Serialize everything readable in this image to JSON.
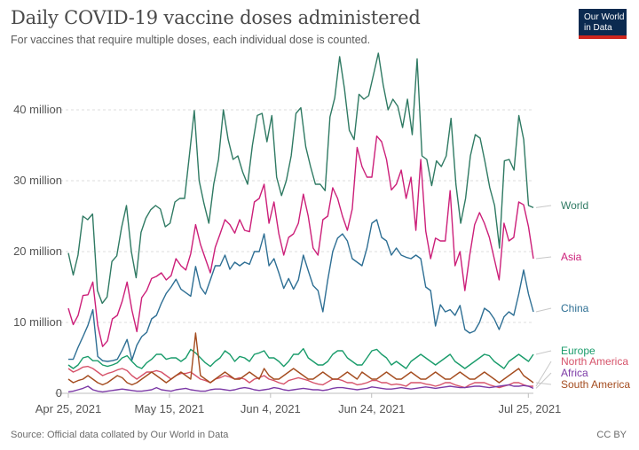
{
  "header": {
    "title": "Daily COVID-19 vaccine doses administered",
    "subtitle": "For vaccines that require multiple doses, each individual dose is counted.",
    "logo_line1": "Our World",
    "logo_line2": "in Data"
  },
  "footer": {
    "source": "Source: Official data collated by Our World in Data",
    "license": "CC BY"
  },
  "colors": {
    "World": "#2f7a63",
    "Asia": "#cc1f79",
    "China": "#2e6f94",
    "Europe": "#1a9c6b",
    "North America": "#d6536a",
    "Africa": "#7c3aa6",
    "South America": "#a44c1f"
  },
  "chart_data": {
    "type": "line",
    "title": "Daily COVID-19 vaccine doses administered",
    "subtitle": "For vaccines that require multiple doses, each individual dose is counted.",
    "x_start": "Apr 25, 2021",
    "x_end": "Jul 26, 2021",
    "x_ticks": [
      "Apr 25, 2021",
      "May 15, 2021",
      "Jun 4, 2021",
      "Jun 24, 2021",
      "Jul 25, 2021"
    ],
    "y_unit": "million doses",
    "ylim": [
      0,
      48
    ],
    "y_ticks": [
      0,
      10,
      20,
      30,
      40
    ],
    "y_tick_labels": [
      "0",
      "10 million",
      "20 million",
      "30 million",
      "40 million"
    ],
    "grid": "horizontal dashed",
    "legend": "inline labels at right",
    "series": [
      {
        "name": "World",
        "values": [
          19.8,
          16.7,
          19.5,
          25.0,
          24.5,
          25.3,
          14.5,
          12.7,
          13.6,
          18.6,
          19.4,
          23.4,
          26.5,
          20.0,
          16.3,
          22.7,
          24.7,
          25.9,
          26.5,
          26.0,
          23.5,
          24.0,
          27.0,
          27.5,
          27.5,
          33.7,
          39.9,
          30.0,
          26.8,
          24.0,
          29.5,
          33.0,
          40.0,
          35.8,
          33.0,
          33.5,
          31.2,
          29.5,
          35.0,
          39.2,
          39.5,
          35.5,
          39.2,
          30.5,
          27.9,
          30.0,
          33.5,
          39.5,
          40.3,
          34.8,
          32.0,
          29.5,
          29.5,
          28.6,
          39.0,
          41.7,
          47.5,
          43.0,
          37.1,
          35.8,
          42.2,
          41.5,
          42.0,
          45.0,
          48.0,
          43.5,
          40.0,
          41.5,
          40.5,
          37.5,
          41.5,
          36.5,
          47.2,
          33.5,
          33.0,
          29.3,
          32.8,
          32.0,
          33.5,
          38.8,
          29.5,
          24.0,
          27.5,
          33.5,
          36.5,
          36.0,
          32.7,
          29.0,
          26.5,
          20.5,
          32.8,
          33.0,
          31.5,
          39.2,
          35.8,
          26.5,
          26.2
        ]
      },
      {
        "name": "Asia",
        "values": [
          12.0,
          9.7,
          11.0,
          13.8,
          13.9,
          15.7,
          9.6,
          6.6,
          7.4,
          10.5,
          11.0,
          13.0,
          15.7,
          11.7,
          8.7,
          13.5,
          14.5,
          16.2,
          16.5,
          17.0,
          16.0,
          16.6,
          19.0,
          18.0,
          17.4,
          19.7,
          23.8,
          21.0,
          19.0,
          17.0,
          20.6,
          22.5,
          24.5,
          23.8,
          22.6,
          24.5,
          23.0,
          22.8,
          27.0,
          27.5,
          29.5,
          24.0,
          27.0,
          22.5,
          19.5,
          22.0,
          22.5,
          24.0,
          28.1,
          25.0,
          20.5,
          19.5,
          24.5,
          25.0,
          29.0,
          27.5,
          25.0,
          23.0,
          26.0,
          34.7,
          32.0,
          30.5,
          30.5,
          36.3,
          35.5,
          33.0,
          28.7,
          29.5,
          31.5,
          27.5,
          30.5,
          23.0,
          33.0,
          22.9,
          19.0,
          21.9,
          21.5,
          21.5,
          28.6,
          18.0,
          20.0,
          14.5,
          19.5,
          23.8,
          25.5,
          24.0,
          22.0,
          19.0,
          16.0,
          24.0,
          21.5,
          22.0,
          27.0,
          26.6,
          23.5,
          19.0
        ]
      },
      {
        "name": "China",
        "values": [
          4.8,
          4.8,
          6.5,
          8.0,
          9.6,
          11.8,
          5.2,
          4.6,
          4.5,
          4.6,
          4.8,
          6.1,
          7.6,
          4.7,
          6.8,
          8.0,
          8.6,
          10.5,
          11.0,
          12.7,
          14.1,
          15.0,
          16.1,
          14.7,
          14.2,
          13.7,
          17.9,
          15.0,
          14.0,
          16.0,
          18.0,
          18.0,
          19.5,
          17.5,
          18.5,
          18.0,
          18.5,
          18.2,
          20.0,
          20.0,
          22.5,
          18.0,
          19.0,
          17.0,
          14.8,
          16.2,
          14.7,
          16.0,
          19.5,
          17.3,
          15.2,
          14.5,
          11.5,
          16.0,
          20.0,
          21.9,
          22.5,
          21.5,
          19.0,
          18.5,
          18.0,
          20.5,
          24.0,
          24.5,
          22.0,
          21.5,
          19.5,
          20.5,
          19.5,
          19.2,
          19.0,
          19.5,
          19.0,
          15.0,
          14.5,
          9.5,
          12.5,
          11.5,
          11.8,
          11.0,
          12.4,
          9.0,
          8.5,
          8.8,
          10.0,
          12.0,
          11.5,
          10.5,
          9.0,
          10.8,
          11.5,
          11.0,
          14.0,
          17.4,
          14.0,
          11.5
        ]
      },
      {
        "name": "Europe",
        "values": [
          4.0,
          3.5,
          4.0,
          5.0,
          5.2,
          4.6,
          4.6,
          4.0,
          3.8,
          4.0,
          4.3,
          5.0,
          5.3,
          4.5,
          3.8,
          3.5,
          4.3,
          4.8,
          5.5,
          5.5,
          4.8,
          5.0,
          5.0,
          4.5,
          5.0,
          6.2,
          5.7,
          5.0,
          4.3,
          3.8,
          4.5,
          5.0,
          6.0,
          5.5,
          4.5,
          5.2,
          5.0,
          4.5,
          5.5,
          5.7,
          6.0,
          5.0,
          5.0,
          4.5,
          3.8,
          4.5,
          5.5,
          5.5,
          6.3,
          5.0,
          4.5,
          4.0,
          4.0,
          4.5,
          5.5,
          6.0,
          6.0,
          5.0,
          4.5,
          4.0,
          4.0,
          5.0,
          6.0,
          6.2,
          5.5,
          5.0,
          4.0,
          4.5,
          4.0,
          3.5,
          4.5,
          5.0,
          5.5,
          5.0,
          4.5,
          4.0,
          4.5,
          5.0,
          5.5,
          4.5,
          4.0,
          3.5,
          4.0,
          4.5,
          5.0,
          5.5,
          5.3,
          4.5,
          4.0,
          3.5,
          4.5,
          5.0,
          5.5,
          5.0,
          4.5,
          5.5
        ]
      },
      {
        "name": "North America",
        "values": [
          3.5,
          3.0,
          3.3,
          3.7,
          3.8,
          3.5,
          3.0,
          2.5,
          2.8,
          3.0,
          3.3,
          3.5,
          3.2,
          2.5,
          2.0,
          2.5,
          3.0,
          3.0,
          3.2,
          3.0,
          2.5,
          2.0,
          2.5,
          2.8,
          2.8,
          3.0,
          2.5,
          2.0,
          1.8,
          1.5,
          2.0,
          2.2,
          2.5,
          2.3,
          2.0,
          2.2,
          2.0,
          1.5,
          2.0,
          2.2,
          2.5,
          2.0,
          1.8,
          1.5,
          1.3,
          1.8,
          2.0,
          2.2,
          2.0,
          1.8,
          1.5,
          1.3,
          1.2,
          1.6,
          2.0,
          2.0,
          1.8,
          1.5,
          1.5,
          1.2,
          1.3,
          1.5,
          1.8,
          1.8,
          1.5,
          1.5,
          1.2,
          1.3,
          1.2,
          1.0,
          1.5,
          1.5,
          1.5,
          1.3,
          1.2,
          1.0,
          1.2,
          1.5,
          1.5,
          1.2,
          1.0,
          0.8,
          1.2,
          1.5,
          1.5,
          1.5,
          1.2,
          1.0,
          0.8,
          1.0,
          1.2,
          1.5,
          1.5,
          1.2,
          1.0,
          1.0
        ]
      },
      {
        "name": "Africa",
        "values": [
          0.2,
          0.3,
          0.5,
          0.7,
          1.0,
          0.5,
          0.3,
          0.2,
          0.3,
          0.4,
          0.5,
          0.6,
          0.5,
          0.4,
          0.3,
          0.3,
          0.4,
          0.5,
          0.8,
          0.5,
          0.4,
          0.3,
          0.5,
          0.6,
          0.7,
          0.5,
          0.4,
          0.3,
          0.3,
          0.5,
          0.6,
          0.6,
          0.5,
          0.4,
          0.5,
          0.7,
          0.8,
          0.7,
          0.5,
          0.4,
          0.5,
          0.6,
          0.8,
          0.7,
          0.5,
          0.4,
          0.5,
          0.6,
          0.7,
          0.6,
          0.5,
          0.5,
          0.4,
          0.5,
          0.7,
          0.8,
          0.8,
          0.7,
          0.6,
          0.5,
          0.6,
          0.7,
          0.9,
          0.8,
          0.7,
          0.6,
          0.6,
          0.7,
          0.8,
          0.7,
          0.6,
          0.7,
          0.8,
          0.9,
          0.8,
          0.7,
          0.8,
          0.9,
          1.0,
          0.9,
          0.8,
          0.8,
          0.9,
          1.0,
          1.0,
          0.9,
          0.8,
          0.9,
          1.0,
          1.1,
          1.2,
          1.0,
          1.0,
          1.1,
          1.0,
          0.7
        ]
      },
      {
        "name": "South America",
        "values": [
          2.0,
          1.5,
          1.8,
          2.0,
          2.5,
          2.0,
          1.5,
          1.2,
          1.5,
          2.0,
          2.5,
          2.2,
          1.5,
          1.2,
          1.5,
          2.0,
          2.5,
          3.0,
          2.5,
          2.0,
          1.5,
          2.0,
          2.5,
          3.0,
          2.5,
          2.0,
          8.5,
          2.5,
          2.0,
          1.5,
          2.0,
          2.5,
          3.0,
          2.5,
          2.0,
          2.0,
          2.5,
          3.0,
          2.5,
          2.0,
          3.5,
          2.5,
          2.0,
          2.0,
          2.5,
          3.0,
          3.5,
          3.0,
          2.5,
          2.0,
          2.0,
          2.5,
          3.0,
          2.5,
          2.0,
          2.0,
          2.5,
          3.0,
          2.5,
          2.0,
          3.0,
          2.5,
          2.0,
          2.0,
          2.5,
          3.0,
          2.5,
          2.0,
          2.0,
          2.5,
          3.0,
          2.5,
          2.0,
          2.0,
          2.5,
          3.0,
          2.5,
          2.0,
          2.0,
          2.5,
          3.0,
          2.5,
          2.0,
          2.0,
          2.5,
          3.0,
          2.5,
          2.0,
          1.5,
          2.0,
          2.5,
          3.0,
          3.5,
          2.5,
          2.0,
          1.5
        ]
      }
    ]
  }
}
